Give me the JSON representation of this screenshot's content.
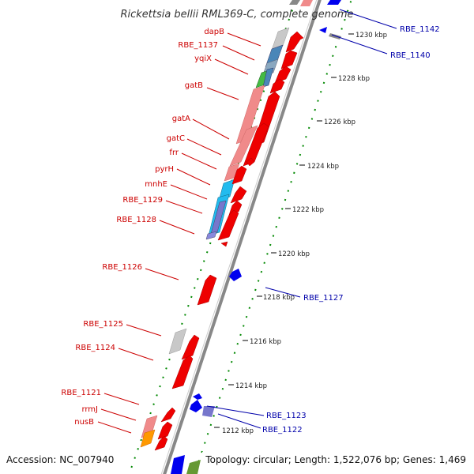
{
  "title": "Rickettsia bellii RML369-C, complete genome",
  "footer": {
    "accession": "Accession: NC_007940",
    "topology": "Topology: circular; Length: 1,522,076 bp; Genes: 1,469"
  },
  "colors": {
    "red_gene": "#ee0000",
    "pink_gene": "#f08a8a",
    "blue_gene": "#0000ee",
    "grey_gene": "#c8c8c8",
    "cyan_gene": "#22bbee",
    "green_gene": "#44bb44",
    "orange_gene": "#ff9900",
    "backbone": "#888888",
    "ruler": "#008800",
    "red_label": "#cc0000",
    "blue_label": "#0000aa"
  },
  "ticks": [
    "1212 kbp",
    "1214 kbp",
    "1216 kbp",
    "1218 kbp",
    "1220 kbp",
    "1222 kbp",
    "1224 kbp",
    "1226 kbp",
    "1228 kbp",
    "1230 kbp"
  ],
  "labels_left": [
    "dapB",
    "RBE_1137",
    "yqiX",
    "gatB",
    "gatA",
    "gatC",
    "frr",
    "pyrH",
    "mnhE",
    "RBE_1129",
    "RBE_1128",
    "RBE_1126",
    "RBE_1125",
    "RBE_1124",
    "RBE_1121",
    "rrmJ",
    "nusB"
  ],
  "labels_right": [
    "RBE_1142",
    "RBE_1140",
    "RBE_1127",
    "RBE_1123",
    "RBE_1122"
  ]
}
